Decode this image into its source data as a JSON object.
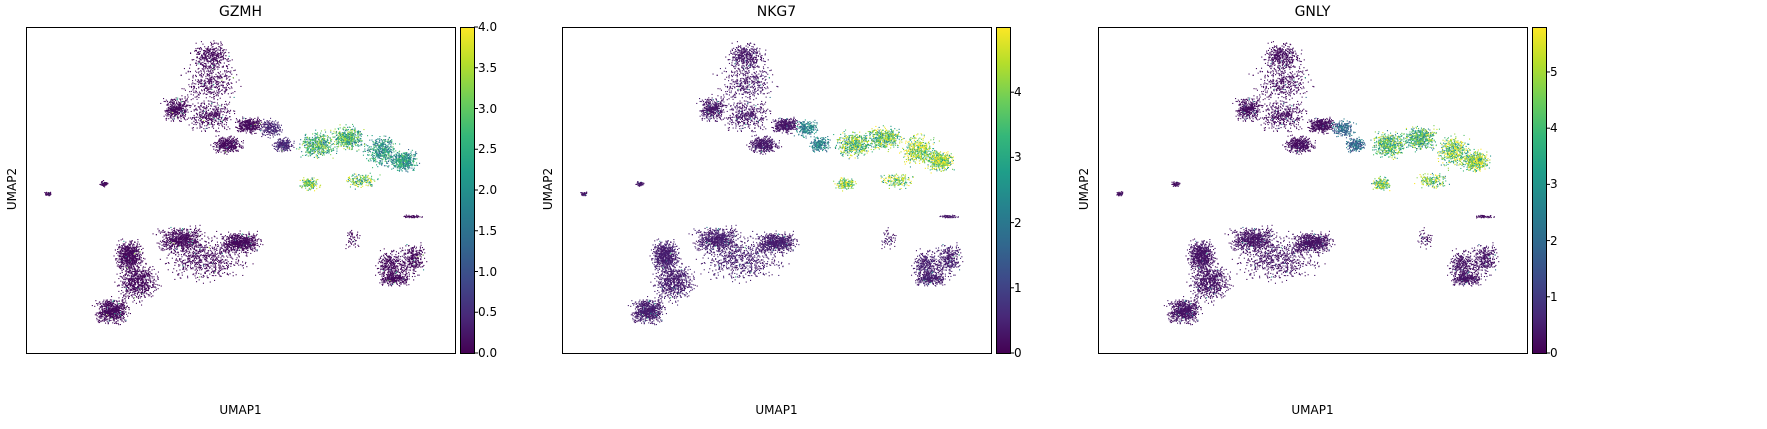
{
  "chart_data": [
    {
      "type": "scatter",
      "title": "GZMH",
      "xlabel": "UMAP1",
      "ylabel": "UMAP2",
      "colorbar": {
        "colormap": "viridis",
        "min": 0.0,
        "max": 4.0,
        "ticks": [
          "0.0",
          "0.5",
          "1.0",
          "1.5",
          "2.0",
          "2.5",
          "3.0",
          "3.5",
          "4.0"
        ],
        "tick_values": [
          0.0,
          0.5,
          1.0,
          1.5,
          2.0,
          2.5,
          3.0,
          3.5,
          4.0
        ]
      },
      "cluster_expression": {
        "top_left_lobes": 0.1,
        "mid_arm": 0.4,
        "right_arm_left": 2.6,
        "right_arm_right": 2.1,
        "arm_tail_bottom": 3.0,
        "large_bottom_cluster": 0.1,
        "bottom_right_cluster": 0.1
      }
    },
    {
      "type": "scatter",
      "title": "NKG7",
      "xlabel": "UMAP1",
      "ylabel": "UMAP2",
      "colorbar": {
        "colormap": "viridis",
        "min": 0,
        "max": 5.0,
        "ticks": [
          "0",
          "1",
          "2",
          "3",
          "4"
        ],
        "tick_values": [
          0,
          1,
          2,
          3,
          4
        ]
      },
      "cluster_expression": {
        "top_left_lobes": 0.3,
        "mid_arm": 2.2,
        "right_arm_left": 3.6,
        "right_arm_right": 4.3,
        "arm_tail_bottom": 4.2,
        "large_bottom_cluster": 0.4,
        "bottom_right_cluster": 0.4
      }
    },
    {
      "type": "scatter",
      "title": "GNLY",
      "xlabel": "UMAP1",
      "ylabel": "UMAP2",
      "colorbar": {
        "colormap": "viridis",
        "min": 0,
        "max": 5.8,
        "ticks": [
          "0",
          "1",
          "2",
          "3",
          "4",
          "5"
        ],
        "tick_values": [
          0,
          1,
          2,
          3,
          4,
          5
        ]
      },
      "cluster_expression": {
        "top_left_lobes": 0.2,
        "mid_arm": 2.0,
        "right_arm_left": 3.9,
        "right_arm_right": 4.6,
        "arm_tail_bottom": 4.4,
        "large_bottom_cluster": 0.3,
        "bottom_right_cluster": 0.3
      }
    }
  ]
}
